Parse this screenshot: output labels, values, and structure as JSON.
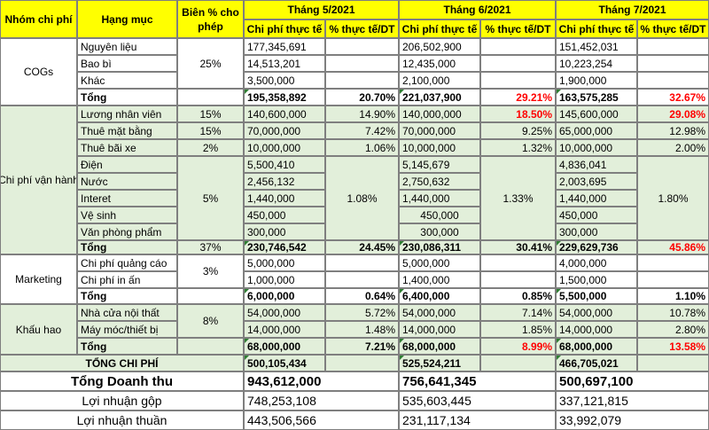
{
  "headers": {
    "group": "Nhóm chi phí",
    "item": "Hạng mục",
    "margin": "Biên % cho phép",
    "months": [
      "Tháng 5/2021",
      "Tháng 6/2021",
      "Tháng 7/2021"
    ],
    "actual": "Chi phí thực tế",
    "pct": "% thực tế/DT"
  },
  "groups": {
    "cogs": "COGs",
    "ops": "Chi phí vận hành",
    "marketing": "Marketing",
    "depreciation": "Khấu hao"
  },
  "cogs": {
    "items": [
      "Nguyên liệu",
      "Bao bì",
      "Khác"
    ],
    "margin": "25%",
    "m5": [
      "177,345,691",
      "14,513,201",
      "3,500,000"
    ],
    "m6": [
      "206,502,900",
      "12,435,000",
      "2,100,000"
    ],
    "m7": [
      "151,452,031",
      "10,223,254",
      "1,900,000"
    ],
    "total_label": "Tổng",
    "total": [
      "195,358,892",
      "20.70%",
      "221,037,900",
      "29.21%",
      "163,575,285",
      "32.67%"
    ]
  },
  "ops": {
    "items": [
      "Lương nhân viên",
      "Thuê mặt bằng",
      "Thuê bãi xe",
      "Điện",
      "Nước",
      "Interet",
      "Vệ sinh",
      "Văn phòng phẩm"
    ],
    "margins": [
      "15%",
      "15%",
      "2%",
      "5%"
    ],
    "m5": [
      "140,600,000",
      "70,000,000",
      "10,000,000",
      "5,500,410",
      "2,456,132",
      "1,440,000",
      "450,000",
      "300,000"
    ],
    "m5pct": [
      "14.90%",
      "7.42%",
      "1.06%",
      "1.08%"
    ],
    "m6": [
      "140,000,000",
      "70,000,000",
      "10,000,000",
      "5,145,679",
      "2,750,632",
      "1,440,000",
      "450,000",
      "300,000"
    ],
    "m6pct": [
      "18.50%",
      "9.25%",
      "1.32%",
      "1.33%"
    ],
    "m7": [
      "145,600,000",
      "65,000,000",
      "10,000,000",
      "4,836,041",
      "2,003,695",
      "1,440,000",
      "450,000",
      "300,000"
    ],
    "m7pct": [
      "29.08%",
      "12.98%",
      "2.00%",
      "1.80%"
    ],
    "total_label": "Tổng",
    "total_margin": "37%",
    "total": [
      "230,746,542",
      "24.45%",
      "230,086,311",
      "30.41%",
      "229,629,736",
      "45.86%"
    ]
  },
  "marketing": {
    "items": [
      "Chi phí quảng cáo",
      "Chi phí in ấn"
    ],
    "margin": "3%",
    "m5": [
      "5,000,000",
      "1,000,000"
    ],
    "m6": [
      "5,000,000",
      "1,400,000"
    ],
    "m7": [
      "4,000,000",
      "1,500,000"
    ],
    "total_label": "Tổng",
    "total": [
      "6,000,000",
      "0.64%",
      "6,400,000",
      "0.85%",
      "5,500,000",
      "1.10%"
    ]
  },
  "depreciation": {
    "items": [
      "Nhà cửa nội thất",
      "Máy móc/thiết bị"
    ],
    "margin": "8%",
    "m5": [
      "54,000,000",
      "14,000,000"
    ],
    "m5pct": [
      "5.72%",
      "1.48%"
    ],
    "m6": [
      "54,000,000",
      "14,000,000"
    ],
    "m6pct": [
      "7.14%",
      "1.85%"
    ],
    "m7": [
      "54,000,000",
      "14,000,000"
    ],
    "m7pct": [
      "10.78%",
      "2.80%"
    ],
    "total_label": "Tổng",
    "total": [
      "68,000,000",
      "7.21%",
      "68,000,000",
      "8.99%",
      "68,000,000",
      "13.58%"
    ]
  },
  "summary": {
    "total_cost_label": "TỔNG CHI PHÍ",
    "total_cost": [
      "500,105,434",
      "525,524,211",
      "466,705,021"
    ],
    "revenue_label": "Tổng Doanh thu",
    "revenue": [
      "943,612,000",
      "756,641,345",
      "500,697,100"
    ],
    "gross_label": "Lợi nhuận gộp",
    "gross": [
      "748,253,108",
      "535,603,445",
      "337,121,815"
    ],
    "net_label": "Lợi nhuận thuần",
    "net": [
      "443,506,566",
      "231,117,134",
      "33,992,079"
    ]
  },
  "colors": {
    "header_bg": "#ffff00",
    "group_bg": "#e2efda",
    "warn": "#ff0000"
  }
}
